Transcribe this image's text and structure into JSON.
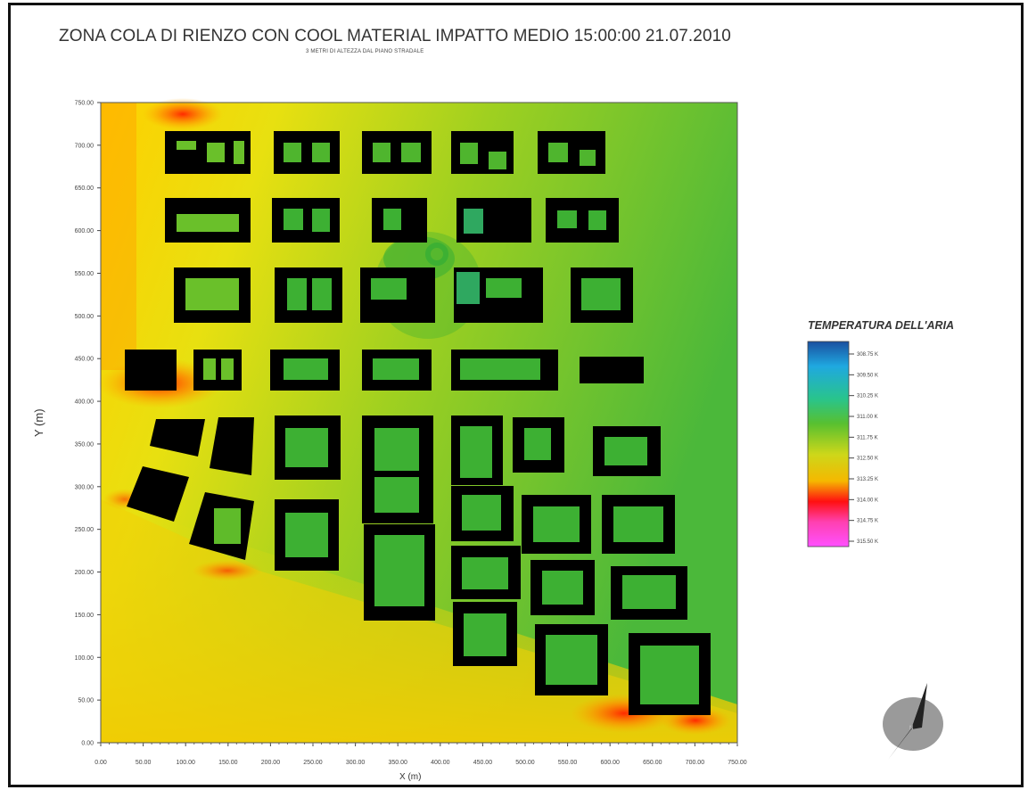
{
  "title": "ZONA COLA DI RIENZO CON COOL MATERIAL IMPATTO MEDIO 15:00:00 21.07.2010",
  "subtitle": "3 METRI DI ALTEZZA DAL PIANO STRADALE",
  "axes": {
    "xlabel": "X (m)",
    "ylabel": "Y (m)",
    "xlim": [
      0,
      750
    ],
    "ylim": [
      0,
      750
    ],
    "x_ticks": [
      "0.00",
      "50.00",
      "100.00",
      "150.00",
      "200.00",
      "250.00",
      "300.00",
      "350.00",
      "400.00",
      "450.00",
      "500.00",
      "550.00",
      "600.00",
      "650.00",
      "700.00",
      "750.00"
    ],
    "y_ticks": [
      "0.00",
      "50.00",
      "100.00",
      "150.00",
      "200.00",
      "250.00",
      "300.00",
      "350.00",
      "400.00",
      "450.00",
      "500.00",
      "550.00",
      "600.00",
      "650.00",
      "700.00",
      "750.00"
    ]
  },
  "legend": {
    "title": "TEMPERATURA DELL'ARIA",
    "labels": [
      "308.75 K",
      "309.50 K",
      "310.25 K",
      "311.00 K",
      "311.75 K",
      "312.50 K",
      "313.25 K",
      "314.00 K",
      "314.75 K",
      "315.50 K"
    ],
    "colors": [
      "#1a4fa0",
      "#1fa8e0",
      "#29c48c",
      "#58c030",
      "#cdd71a",
      "#f5b800",
      "#ff4a00",
      "#ff1010",
      "#ff40b0",
      "#ff50ff"
    ]
  },
  "map_colors": {
    "building": "#000000",
    "cool_zone": "#3db033",
    "warm_zone": "#d7de10",
    "hot_zone": "#ff8a00"
  },
  "compass": {
    "label": "N"
  }
}
